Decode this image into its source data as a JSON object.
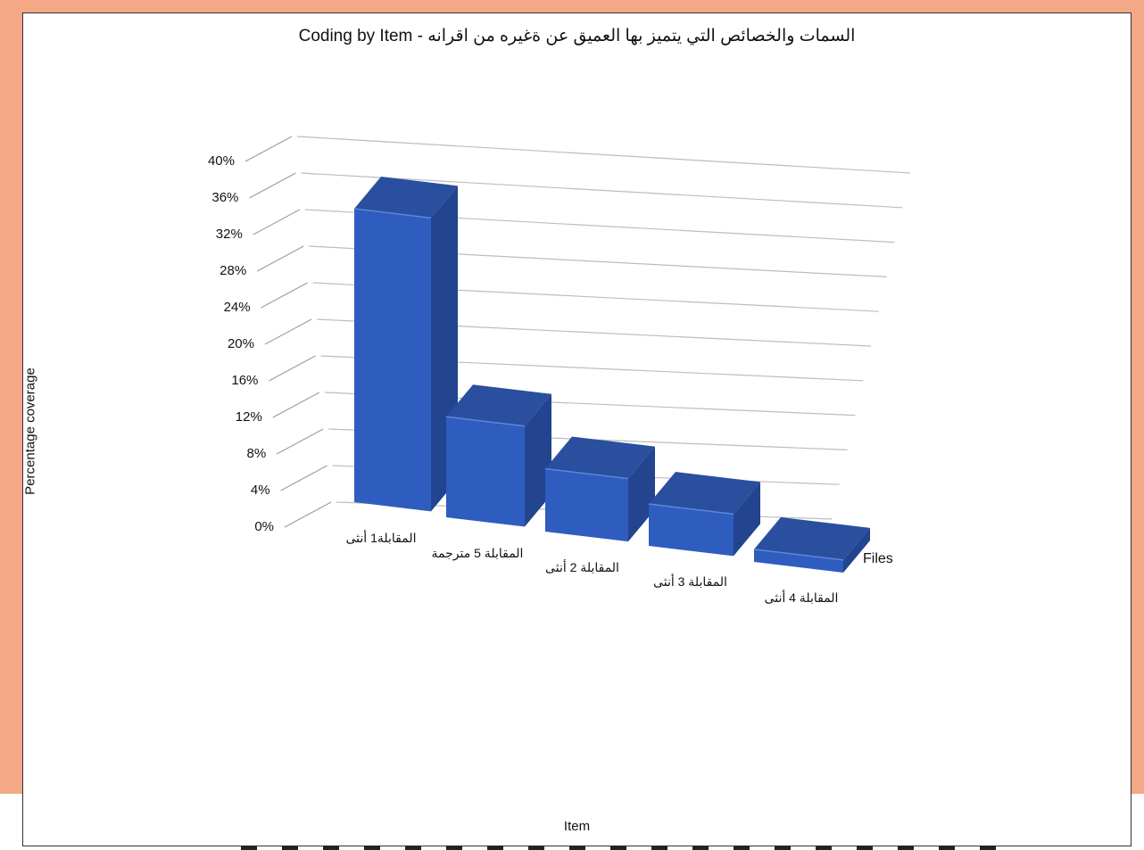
{
  "chart_data": {
    "type": "bar",
    "title": "Coding by Item - السمات والخصائص التي يتميز بها العميق عن ةغيره من اقرانه",
    "xlabel": "Item",
    "ylabel": "Percentage coverage",
    "series_label": "Files",
    "categories": [
      "المقابلة1 أنثى",
      "المقابلة 5 مترجمة",
      "المقابلة 2 أنثى",
      "المقابلة 3 أنثى",
      "المقابلة 4 أنثى"
    ],
    "series": [
      {
        "values": [
          35,
          12,
          7.5,
          5,
          1.5
        ]
      }
    ],
    "ylim": [
      0,
      40
    ],
    "yticks": [
      "0%",
      "4%",
      "8%",
      "12%",
      "16%",
      "20%",
      "24%",
      "28%",
      "32%",
      "36%",
      "40%"
    ],
    "grid": true,
    "bar_colors": {
      "front": "#2f5cbf",
      "side": "#23448e",
      "top": "#2a4f9f"
    }
  }
}
